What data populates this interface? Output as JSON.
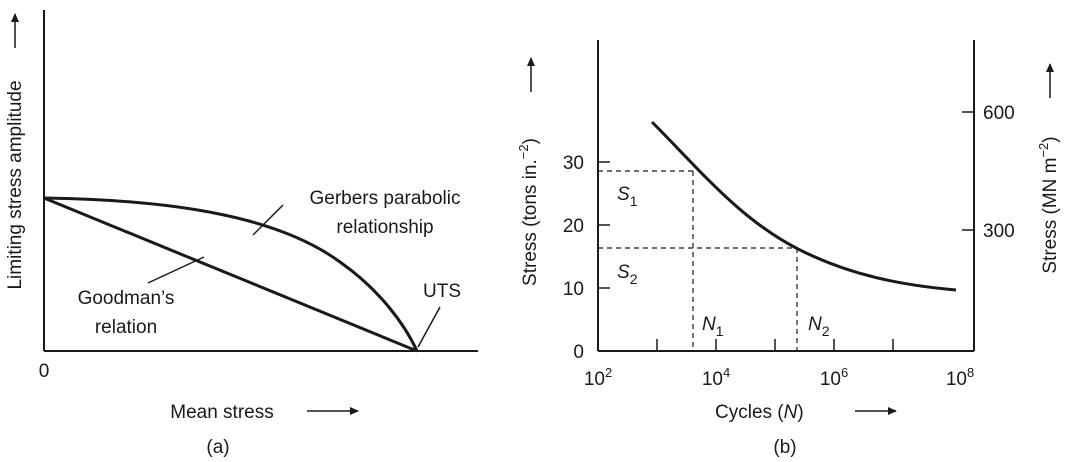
{
  "panel_a": {
    "caption": "(a)",
    "y_label": "Limiting stress amplitude",
    "x_label": "Mean stress",
    "origin_label": "0",
    "gerber_label_line1": "Gerbers parabolic",
    "gerber_label_line2": "relationship",
    "goodman_label_line1": "Goodman’s",
    "goodman_label_line2": "relation",
    "uts_label": "UTS"
  },
  "panel_b": {
    "caption": "(b)",
    "x_label_prefix": "Cycles (",
    "x_label_var": "N",
    "x_label_suffix": ")",
    "left_axis_label": "Stress (tons in.",
    "left_axis_sup": "−2",
    "left_axis_close": ")",
    "right_axis_label": "Stress (MN m",
    "right_axis_sup": "−2",
    "right_axis_close": ")",
    "x_ticks": [
      {
        "base": "10",
        "exp": "2",
        "value": 2
      },
      {
        "base": "10",
        "exp": "4",
        "value": 4
      },
      {
        "base": "10",
        "exp": "6",
        "value": 6
      },
      {
        "base": "10",
        "exp": "8",
        "value": 8
      }
    ],
    "left_ticks": [
      {
        "label": "0",
        "value": 0
      },
      {
        "label": "10",
        "value": 10
      },
      {
        "label": "20",
        "value": 20
      },
      {
        "label": "30",
        "value": 30
      }
    ],
    "right_ticks": [
      {
        "label": "300",
        "value": 300
      },
      {
        "label": "600",
        "value": 600
      }
    ],
    "s1": {
      "letter": "S",
      "sub": "1"
    },
    "s2": {
      "letter": "S",
      "sub": "2"
    },
    "n1": {
      "letter": "N",
      "sub": "1"
    },
    "n2": {
      "letter": "N",
      "sub": "2"
    }
  }
}
